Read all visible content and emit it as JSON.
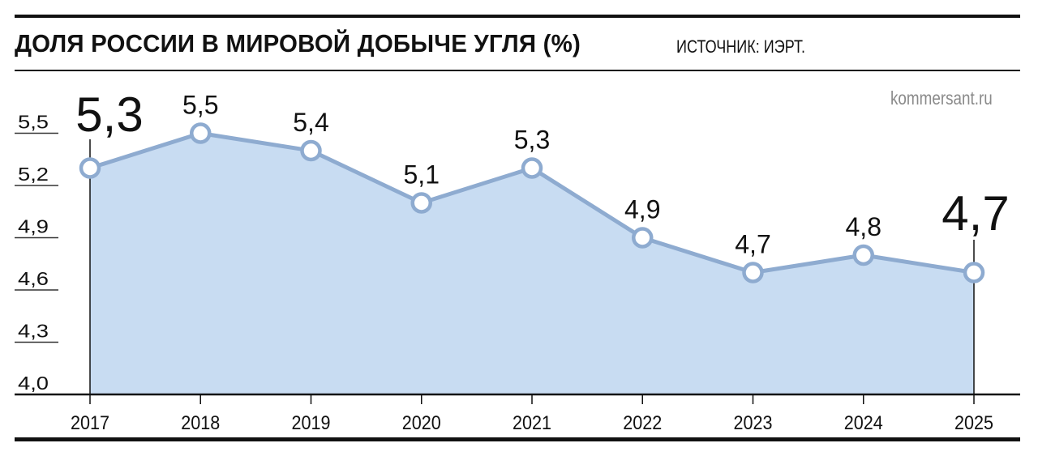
{
  "header": {
    "title": "ДОЛЯ РОССИИ В МИРОВОЙ ДОБЫЧЕ УГЛЯ (%)",
    "source": "ИСТОЧНИК: ИЭРТ.",
    "credit": "kommersant.ru"
  },
  "colors": {
    "fill": "#c8dcf2",
    "line": "#8eabd0",
    "marker_fill": "#ffffff",
    "text": "#111111",
    "credit": "#8a8a8a"
  },
  "chart_data": {
    "type": "area",
    "title": "ДОЛЯ РОССИИ В МИРОВОЙ ДОБЫЧЕ УГЛЯ (%)",
    "subtitle": "ИСТОЧНИК: ИЭРТ.",
    "xlabel": "",
    "ylabel": "%",
    "categories": [
      "2017",
      "2018",
      "2019",
      "2020",
      "2021",
      "2022",
      "2023",
      "2024",
      "2025"
    ],
    "values": [
      5.3,
      5.5,
      5.4,
      5.1,
      5.3,
      4.9,
      4.7,
      4.8,
      4.7
    ],
    "value_labels": [
      "5,3",
      "5,5",
      "5,4",
      "5,1",
      "5,3",
      "4,9",
      "4,7",
      "4,8",
      "4,7"
    ],
    "highlighted": [
      "2017",
      "2025"
    ],
    "yticks": [
      4.0,
      4.3,
      4.6,
      4.9,
      5.2,
      5.5
    ],
    "ytick_labels": [
      "4,0",
      "4,3",
      "4,6",
      "4,9",
      "5,2",
      "5,5"
    ],
    "ylim": [
      4.0,
      5.65
    ],
    "grid": false,
    "legend": "none",
    "markers": "hollow circles"
  }
}
